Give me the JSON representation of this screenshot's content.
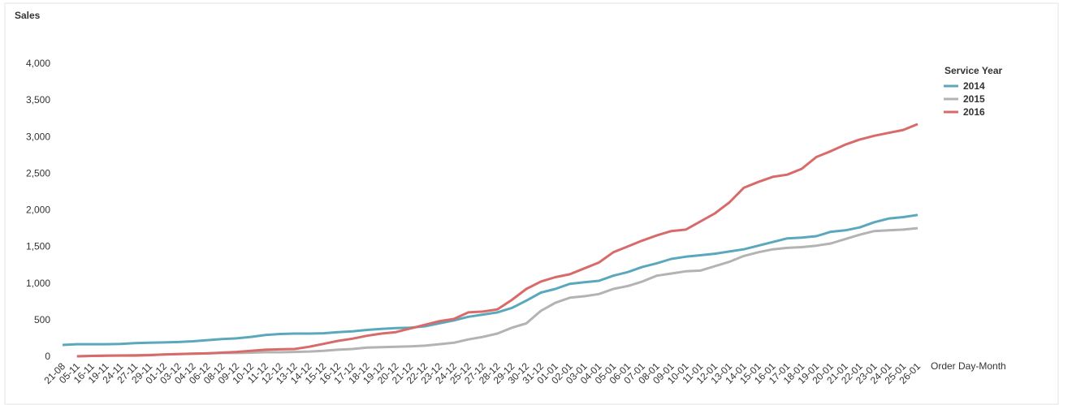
{
  "chart_data": {
    "type": "line",
    "y_label": "Sales",
    "x_label": "Order Day-Month",
    "legend_title": "Service Year",
    "categories": [
      "21-08",
      "05-11",
      "16-11",
      "19-11",
      "24-11",
      "27-11",
      "29-11",
      "01-12",
      "03-12",
      "04-12",
      "06-12",
      "08-12",
      "09-12",
      "10-12",
      "11-12",
      "12-12",
      "13-12",
      "14-12",
      "15-12",
      "16-12",
      "17-12",
      "18-12",
      "19-12",
      "20-12",
      "21-12",
      "22-12",
      "23-12",
      "24-12",
      "25-12",
      "27-12",
      "28-12",
      "29-12",
      "30-12",
      "31-12",
      "01-01",
      "02-01",
      "03-01",
      "04-01",
      "05-01",
      "06-01",
      "07-01",
      "08-01",
      "09-01",
      "10-01",
      "11-01",
      "12-01",
      "13-01",
      "14-01",
      "15-01",
      "16-01",
      "17-01",
      "18-01",
      "19-01",
      "20-01",
      "21-01",
      "22-01",
      "23-01",
      "24-01",
      "25-01",
      "26-01"
    ],
    "series": [
      {
        "name": "2014",
        "color": "#5ba8bd",
        "values": [
          155,
          165,
          165,
          165,
          170,
          180,
          185,
          190,
          195,
          205,
          220,
          235,
          245,
          265,
          290,
          305,
          310,
          310,
          315,
          330,
          340,
          360,
          375,
          385,
          390,
          410,
          450,
          490,
          540,
          570,
          600,
          660,
          760,
          870,
          920,
          990,
          1010,
          1030,
          1100,
          1150,
          1220,
          1270,
          1330,
          1360,
          1380,
          1400,
          1430,
          1460,
          1510,
          1560,
          1610,
          1620,
          1640,
          1700,
          1720,
          1760,
          1830,
          1880,
          1900,
          1930
        ]
      },
      {
        "name": "2015",
        "color": "#b3b3b3",
        "values": [
          null,
          0,
          5,
          10,
          12,
          15,
          20,
          25,
          30,
          35,
          40,
          45,
          45,
          50,
          55,
          55,
          60,
          65,
          75,
          90,
          100,
          120,
          125,
          130,
          135,
          145,
          165,
          185,
          230,
          265,
          310,
          390,
          450,
          620,
          730,
          800,
          820,
          850,
          920,
          960,
          1020,
          1100,
          1130,
          1160,
          1170,
          1230,
          1290,
          1370,
          1420,
          1460,
          1480,
          1490,
          1510,
          1540,
          1600,
          1660,
          1710,
          1720,
          1730,
          1750
        ]
      },
      {
        "name": "2016",
        "color": "#d96a6a",
        "values": [
          null,
          0,
          5,
          8,
          10,
          10,
          15,
          25,
          30,
          35,
          40,
          50,
          60,
          75,
          90,
          95,
          100,
          130,
          170,
          210,
          240,
          280,
          310,
          330,
          380,
          430,
          480,
          510,
          600,
          610,
          640,
          770,
          920,
          1020,
          1080,
          1120,
          1200,
          1280,
          1420,
          1500,
          1580,
          1650,
          1710,
          1730,
          1840,
          1950,
          2100,
          2300,
          2380,
          2450,
          2480,
          2560,
          2720,
          2800,
          2890,
          2960,
          3010,
          3050,
          3090,
          3170
        ]
      }
    ],
    "ylim": [
      0,
      4000
    ],
    "yticks": [
      0,
      500,
      {
        "value": 1000,
        "label": "1,000"
      },
      {
        "value": 1500,
        "label": "1,500"
      },
      {
        "value": 2000,
        "label": "2,000"
      },
      {
        "value": 2500,
        "label": "2,500"
      },
      {
        "value": 3000,
        "label": "3,000"
      },
      {
        "value": 3500,
        "label": "3,500"
      },
      {
        "value": 4000,
        "label": "4,000"
      }
    ],
    "grid": false,
    "legend_position": "right"
  }
}
